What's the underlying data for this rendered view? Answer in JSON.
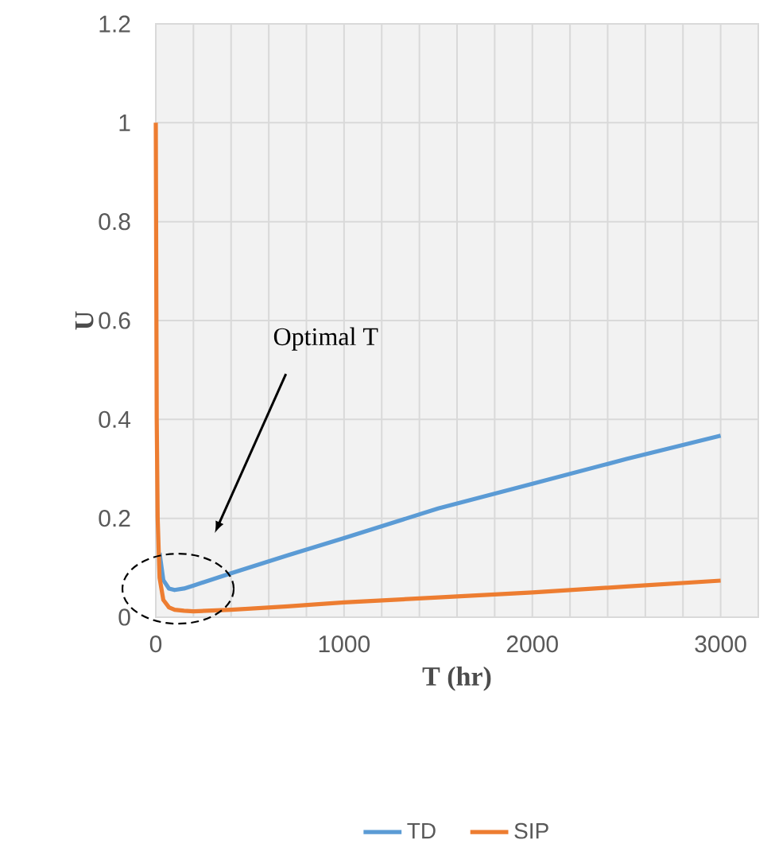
{
  "chart_data": {
    "type": "line",
    "xlabel": "T (hr)",
    "ylabel": "U",
    "x": [
      0,
      5,
      10,
      20,
      40,
      70,
      100,
      150,
      200,
      400,
      700,
      1000,
      1500,
      2000,
      2500,
      3000
    ],
    "series": [
      {
        "name": "TD",
        "color": "#5b9bd5",
        "values": [
          null,
          null,
          null,
          0.13,
          0.075,
          0.058,
          0.055,
          0.058,
          0.064,
          0.089,
          0.125,
          0.16,
          0.22,
          0.27,
          0.32,
          0.367
        ]
      },
      {
        "name": "SIP",
        "color": "#ed7d31",
        "values": [
          1,
          0.4,
          0.2,
          0.08,
          0.035,
          0.02,
          0.015,
          0.013,
          0.012,
          0.015,
          0.022,
          0.03,
          0.04,
          0.05,
          0.062,
          0.074
        ]
      }
    ],
    "xlim": [
      0,
      3200
    ],
    "xticks": [
      0,
      {
        "value": 200,
        "label": null
      },
      {
        "value": 400,
        "label": null
      },
      {
        "value": 600,
        "label": null
      },
      {
        "value": 800,
        "label": null
      },
      1000,
      {
        "value": 1200,
        "label": null
      },
      {
        "value": 1400,
        "label": null
      },
      {
        "value": 1600,
        "label": null
      },
      {
        "value": 1800,
        "label": null
      },
      2000,
      {
        "value": 2200,
        "label": null
      },
      {
        "value": 2400,
        "label": null
      },
      {
        "value": 2600,
        "label": null
      },
      {
        "value": 2800,
        "label": null
      },
      3000,
      {
        "value": 3200,
        "label": null
      }
    ],
    "ylim": [
      0,
      1.2
    ],
    "yticks": [
      0,
      0.2,
      0.4,
      0.6,
      0.8,
      1,
      1.2
    ],
    "grid": true,
    "legend": "bottom",
    "annotations": [
      "Optimal T"
    ]
  }
}
